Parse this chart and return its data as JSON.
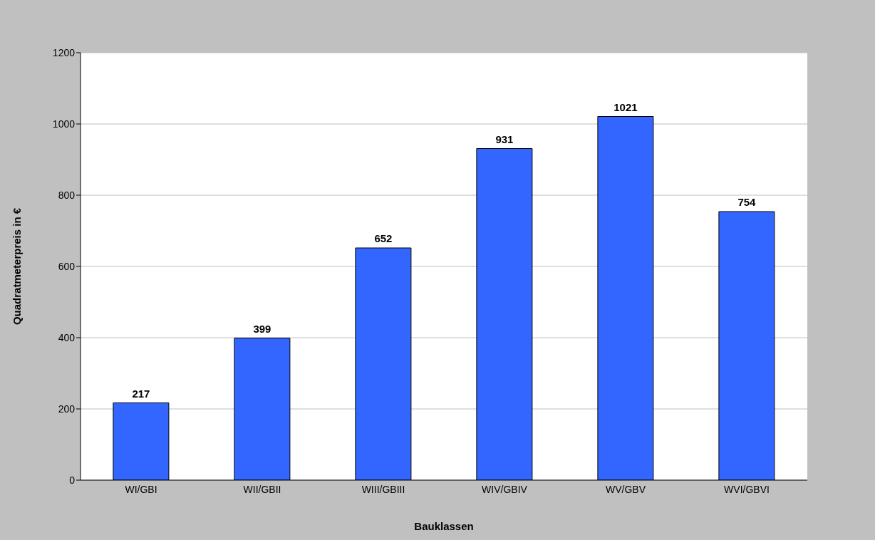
{
  "chart_data": {
    "type": "bar",
    "xlabel": "Bauklassen",
    "ylabel": "Quadratmeterpreis in €",
    "categories": [
      "WI/GBI",
      "WII/GBII",
      "WIII/GBIII",
      "WIV/GBIV",
      "WV/GBV",
      "WVI/GBVI"
    ],
    "values": [
      217,
      399,
      652,
      931,
      1021,
      754
    ],
    "color": "#3366ff",
    "ylim": [
      0,
      1200
    ],
    "yticks": [
      0,
      200,
      400,
      600,
      800,
      1000,
      1200
    ],
    "grid": "y",
    "data_labels": true
  }
}
